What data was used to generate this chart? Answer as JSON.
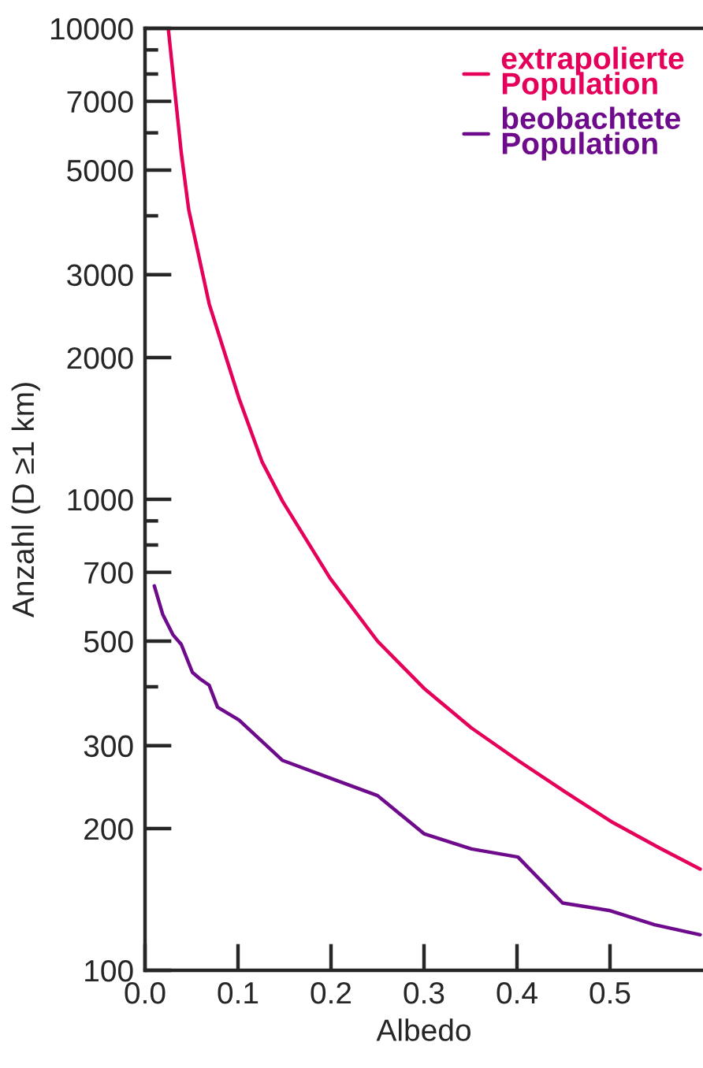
{
  "chart_data": {
    "type": "line",
    "xlabel": "Albedo",
    "ylabel": "Anzahl (D ≥1 km)",
    "log": "y",
    "xlim": [
      0,
      0.6
    ],
    "xticks": [
      {
        "value": 0,
        "label": "0.0"
      },
      0.1,
      0.2,
      0.3,
      0.4,
      0.5
    ],
    "ylim": [
      100,
      10000
    ],
    "yticks": [
      100,
      200,
      300,
      {
        "value": 400,
        "label": null
      },
      500,
      700,
      {
        "value": 800,
        "label": null
      },
      {
        "value": 900,
        "label": null
      },
      1000,
      2000,
      3000,
      {
        "value": 4000,
        "label": null
      },
      5000,
      {
        "value": 6000,
        "label": null
      },
      7000,
      {
        "value": 8000,
        "label": null
      },
      {
        "value": 9000,
        "label": null
      },
      10000
    ],
    "legend": "top right",
    "grid": false,
    "line_style": "solid",
    "series": [
      {
        "name": "extrapolierte\nPopulation",
        "color": "#e5005a",
        "x": [
          0.025,
          0.039,
          0.047,
          0.069,
          0.101,
          0.126,
          0.148,
          0.199,
          0.25,
          0.3,
          0.351,
          0.401,
          0.452,
          0.503,
          0.553,
          0.597
        ],
        "values": [
          10000,
          5440,
          4120,
          2600,
          1640,
          1200,
          990,
          680,
          500,
          397,
          327,
          279,
          239,
          206,
          182,
          164
        ]
      },
      {
        "name": "beobachtete\nPopulation",
        "color": "#6e0b8c",
        "x": [
          0.01,
          0.019,
          0.03,
          0.039,
          0.051,
          0.059,
          0.069,
          0.078,
          0.101,
          0.148,
          0.199,
          0.25,
          0.3,
          0.351,
          0.401,
          0.449,
          0.499,
          0.548,
          0.597
        ],
        "values": [
          655,
          570,
          516,
          492,
          429,
          416,
          403,
          362,
          340,
          279,
          256,
          235,
          195,
          181,
          174,
          139,
          134,
          125,
          119
        ]
      }
    ]
  }
}
